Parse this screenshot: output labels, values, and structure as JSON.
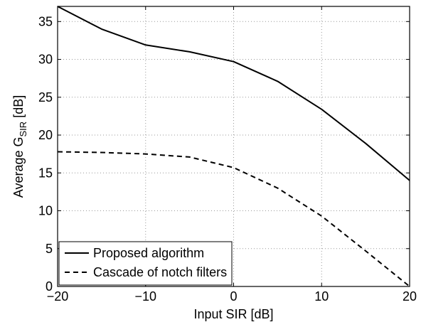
{
  "chart_data": {
    "type": "line",
    "xlabel": "Input SIR [dB]",
    "ylabel_main": "Average G",
    "ylabel_sub": "SIR",
    "ylabel_unit": " [dB]",
    "xlim": [
      -20,
      20
    ],
    "ylim": [
      0,
      37
    ],
    "xticks": [
      -20,
      -10,
      0,
      10,
      20
    ],
    "xtick_labels": [
      "−20",
      "−10",
      "0",
      "10",
      "20"
    ],
    "yticks": [
      0,
      5,
      10,
      15,
      20,
      25,
      30,
      35
    ],
    "ytick_labels": [
      "0",
      "5",
      "10",
      "15",
      "20",
      "25",
      "30",
      "35"
    ],
    "grid": true,
    "legend_position": "bottom-left",
    "series": [
      {
        "name": "Proposed algorithm",
        "style": "solid",
        "x": [
          -20,
          -15,
          -10,
          -5,
          0,
          5,
          10,
          15,
          20
        ],
        "y": [
          37.0,
          34.0,
          31.9,
          31.0,
          29.7,
          27.1,
          23.4,
          18.9,
          14.0
        ]
      },
      {
        "name": "Cascade of notch filters",
        "style": "dashed",
        "x": [
          -20,
          -15,
          -10,
          -5,
          0,
          5,
          10,
          15,
          20
        ],
        "y": [
          17.8,
          17.7,
          17.5,
          17.1,
          15.7,
          13.0,
          9.3,
          4.7,
          0.0
        ]
      }
    ]
  }
}
